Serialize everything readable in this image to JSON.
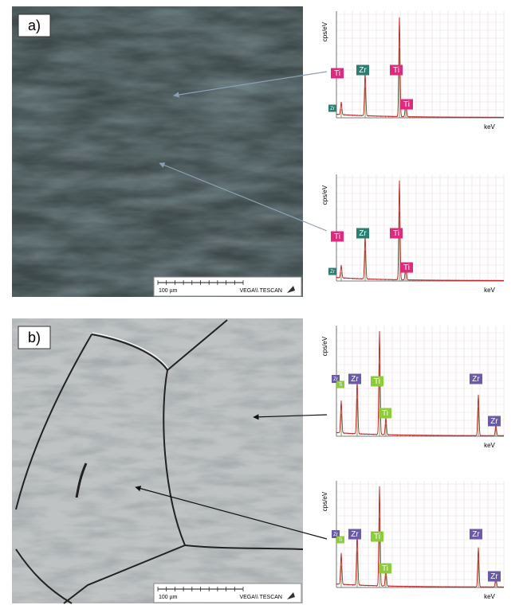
{
  "panels": [
    {
      "label": "a)",
      "scale_bar": "100 µm",
      "instrument": "VEGA\\\\ TESCAN",
      "spectra": [
        {
          "y_label": "cps/eV",
          "x_label": "keV",
          "elements": [
            {
              "symbol": "Ti",
              "color": "#e0287d"
            },
            {
              "symbol": "Zr",
              "color": "#2a7f70"
            },
            {
              "symbol": "Zr",
              "color": "#2a7f70"
            },
            {
              "symbol": "Ti",
              "color": "#e0287d"
            },
            {
              "symbol": "Ti",
              "color": "#e0287d"
            }
          ]
        },
        {
          "y_label": "cps/eV",
          "x_label": "keV",
          "elements": [
            {
              "symbol": "Ti",
              "color": "#e0287d"
            },
            {
              "symbol": "Zr",
              "color": "#2a7f70"
            },
            {
              "symbol": "Zr",
              "color": "#2a7f70"
            },
            {
              "symbol": "Ti",
              "color": "#e0287d"
            },
            {
              "symbol": "Ti",
              "color": "#e0287d"
            }
          ]
        }
      ]
    },
    {
      "label": "b)",
      "scale_bar": "100 µm",
      "instrument": "VEGA\\\\ TESCAN",
      "spectra": [
        {
          "y_label": "cps/eV",
          "x_label": "keV",
          "elements": [
            {
              "symbol": "Zr",
              "color": "#6a5aa8"
            },
            {
              "symbol": "Ti",
              "color": "#8ccc3a"
            },
            {
              "symbol": "Zr",
              "color": "#6a5aa8"
            },
            {
              "symbol": "Ti",
              "color": "#8ccc3a"
            },
            {
              "symbol": "Ti",
              "color": "#8ccc3a"
            },
            {
              "symbol": "Zr",
              "color": "#6a5aa8"
            },
            {
              "symbol": "Zr",
              "color": "#6a5aa8"
            }
          ]
        },
        {
          "y_label": "cps/eV",
          "x_label": "keV",
          "elements": [
            {
              "symbol": "Zr",
              "color": "#6a5aa8"
            },
            {
              "symbol": "Ti",
              "color": "#8ccc3a"
            },
            {
              "symbol": "Zr",
              "color": "#6a5aa8"
            },
            {
              "symbol": "Ti",
              "color": "#8ccc3a"
            },
            {
              "symbol": "Ti",
              "color": "#8ccc3a"
            },
            {
              "symbol": "Zr",
              "color": "#6a5aa8"
            },
            {
              "symbol": "Zr",
              "color": "#6a5aa8"
            }
          ]
        }
      ]
    }
  ]
}
